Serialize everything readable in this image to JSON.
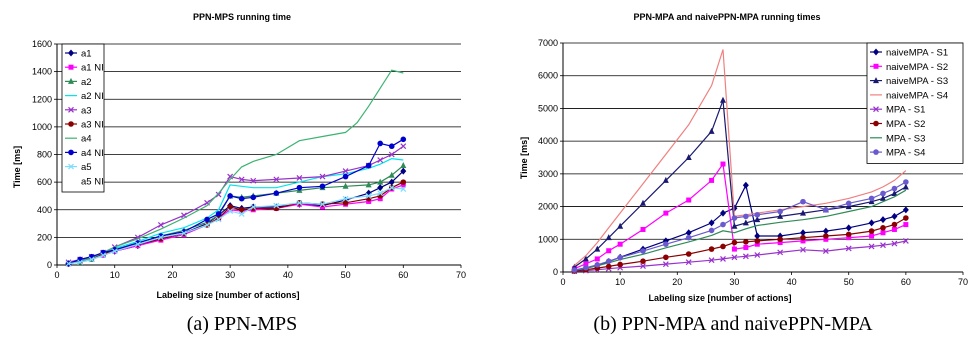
{
  "captions": {
    "left": "(a) PPN-MPS",
    "right": "(b) PPN-MPA and naivePPN-MPA"
  },
  "chart_data": [
    {
      "type": "line",
      "title": "PPN-MPS running time",
      "xlabel": "Labeling size [number of actions]",
      "ylabel": "Time [ms]",
      "xlim": [
        0,
        70
      ],
      "ylim": [
        0,
        1600
      ],
      "xticks": [
        0,
        10,
        20,
        30,
        40,
        50,
        60,
        70
      ],
      "yticks": [
        0,
        200,
        400,
        600,
        800,
        1000,
        1200,
        1400,
        1600
      ],
      "grid": "horizontal",
      "legend_position": "top-left",
      "series": [
        {
          "name": "a1",
          "color": "#000080",
          "marker": "diamond",
          "x": [
            2,
            4,
            6,
            8,
            10,
            14,
            18,
            22,
            26,
            28,
            30,
            32,
            34,
            38,
            42,
            46,
            50,
            54,
            56,
            58,
            60
          ],
          "y": [
            10,
            30,
            50,
            80,
            100,
            140,
            190,
            230,
            300,
            360,
            430,
            410,
            420,
            420,
            440,
            430,
            470,
            520,
            560,
            600,
            680
          ]
        },
        {
          "name": "a1 NI",
          "color": "#ff00ff",
          "marker": "square",
          "x": [
            2,
            4,
            6,
            8,
            10,
            14,
            18,
            22,
            26,
            28,
            30,
            32,
            34,
            38,
            42,
            46,
            50,
            54,
            56,
            58,
            60
          ],
          "y": [
            10,
            30,
            40,
            70,
            100,
            140,
            180,
            220,
            290,
            340,
            400,
            390,
            400,
            410,
            440,
            420,
            440,
            460,
            480,
            550,
            580
          ]
        },
        {
          "name": "a2",
          "color": "#2e8b57",
          "marker": "triangle",
          "x": [
            2,
            4,
            6,
            8,
            10,
            14,
            18,
            22,
            26,
            28,
            30,
            32,
            34,
            38,
            42,
            46,
            50,
            54,
            56,
            58,
            60
          ],
          "y": [
            10,
            20,
            40,
            80,
            110,
            160,
            210,
            250,
            310,
            360,
            500,
            490,
            500,
            520,
            540,
            560,
            570,
            580,
            600,
            650,
            720
          ]
        },
        {
          "name": "a2 NI",
          "color": "#00e5ee",
          "marker": "none",
          "x": [
            2,
            4,
            6,
            8,
            10,
            14,
            18,
            22,
            26,
            28,
            30,
            32,
            34,
            38,
            42,
            46,
            50,
            54,
            56,
            58,
            60
          ],
          "y": [
            20,
            30,
            50,
            80,
            120,
            170,
            230,
            270,
            340,
            400,
            580,
            570,
            560,
            560,
            600,
            640,
            660,
            700,
            730,
            770,
            760
          ]
        },
        {
          "name": "a3",
          "color": "#9932cc",
          "marker": "x",
          "x": [
            2,
            4,
            6,
            8,
            10,
            14,
            18,
            22,
            26,
            28,
            30,
            32,
            34,
            38,
            42,
            46,
            50,
            54,
            56,
            58,
            60
          ],
          "y": [
            20,
            40,
            60,
            90,
            130,
            200,
            290,
            360,
            450,
            510,
            640,
            620,
            610,
            620,
            630,
            640,
            680,
            720,
            760,
            800,
            860
          ]
        },
        {
          "name": "a3 NI",
          "color": "#8b0000",
          "marker": "circle",
          "x": [
            2,
            4,
            6,
            8,
            10,
            14,
            18,
            22,
            26,
            28,
            30,
            32,
            34,
            38,
            42,
            46,
            50,
            54,
            56,
            58,
            60
          ],
          "y": [
            10,
            30,
            50,
            80,
            110,
            150,
            190,
            230,
            290,
            340,
            420,
            400,
            410,
            410,
            450,
            440,
            450,
            480,
            500,
            560,
            600
          ]
        },
        {
          "name": "a4",
          "color": "#3cb371",
          "marker": "none",
          "x": [
            2,
            4,
            6,
            8,
            10,
            14,
            18,
            22,
            26,
            28,
            30,
            32,
            34,
            38,
            42,
            46,
            50,
            52,
            54,
            56,
            58,
            60
          ],
          "y": [
            10,
            30,
            50,
            90,
            130,
            190,
            260,
            340,
            430,
            520,
            620,
            710,
            750,
            800,
            900,
            930,
            960,
            1030,
            1150,
            1280,
            1410,
            1390
          ]
        },
        {
          "name": "a4 NI",
          "color": "#0000cd",
          "marker": "circle",
          "x": [
            2,
            4,
            6,
            8,
            10,
            14,
            18,
            22,
            26,
            28,
            30,
            32,
            34,
            38,
            42,
            46,
            50,
            54,
            56,
            58,
            60
          ],
          "y": [
            10,
            40,
            60,
            90,
            110,
            160,
            210,
            240,
            330,
            370,
            500,
            480,
            490,
            520,
            560,
            570,
            640,
            720,
            880,
            860,
            910
          ]
        },
        {
          "name": "a5",
          "color": "#7fdcff",
          "marker": "x",
          "x": [
            2,
            4,
            6,
            8,
            10,
            14,
            18,
            22,
            26,
            28,
            30,
            32,
            34,
            38,
            42,
            46,
            50,
            54,
            56,
            58,
            60
          ],
          "y": [
            10,
            20,
            40,
            70,
            100,
            150,
            200,
            230,
            290,
            330,
            390,
            370,
            420,
            430,
            450,
            440,
            480,
            500,
            520,
            560,
            550
          ]
        },
        {
          "name": "a5 NI",
          "color": "#000000",
          "marker": "none",
          "x": [],
          "y": []
        }
      ]
    },
    {
      "type": "line",
      "title": "PPN-MPA and naivePPN-MPA running times",
      "xlabel": "Labeling size [number of actions]",
      "ylabel": "Time [ms]",
      "xlim": [
        0,
        70
      ],
      "ylim": [
        0,
        7000
      ],
      "xticks": [
        0,
        10,
        20,
        30,
        40,
        50,
        60,
        70
      ],
      "yticks": [
        0,
        1000,
        2000,
        3000,
        4000,
        5000,
        6000,
        7000
      ],
      "grid": "horizontal",
      "legend_position": "top-right",
      "series": [
        {
          "name": "naiveMPA - S1",
          "color": "#000080",
          "marker": "diamond",
          "x": [
            2,
            4,
            6,
            8,
            10,
            14,
            18,
            22,
            26,
            28,
            30,
            32,
            34,
            38,
            42,
            46,
            50,
            54,
            56,
            58,
            60
          ],
          "y": [
            50,
            120,
            200,
            320,
            450,
            700,
            950,
            1200,
            1500,
            1800,
            1950,
            2650,
            1100,
            1100,
            1200,
            1250,
            1350,
            1500,
            1600,
            1700,
            1900
          ]
        },
        {
          "name": "naiveMPA - S2",
          "color": "#ff00ff",
          "marker": "square",
          "x": [
            2,
            4,
            6,
            8,
            10,
            14,
            18,
            22,
            26,
            28,
            30,
            32,
            34,
            38,
            42,
            46,
            50,
            54,
            56,
            58,
            60
          ],
          "y": [
            100,
            250,
            400,
            650,
            850,
            1300,
            1800,
            2200,
            2800,
            3300,
            700,
            750,
            850,
            900,
            950,
            1000,
            1050,
            1100,
            1200,
            1300,
            1450
          ]
        },
        {
          "name": "naiveMPA - S3",
          "color": "#191970",
          "marker": "triangle",
          "x": [
            2,
            4,
            6,
            8,
            10,
            14,
            18,
            22,
            26,
            28,
            30,
            32,
            34,
            38,
            42,
            46,
            50,
            54,
            56,
            58,
            60
          ],
          "y": [
            150,
            400,
            700,
            1050,
            1400,
            2100,
            2800,
            3500,
            4300,
            5250,
            1400,
            1500,
            1600,
            1700,
            1800,
            1900,
            2000,
            2150,
            2250,
            2400,
            2600
          ]
        },
        {
          "name": "naiveMPA - S4",
          "color": "#f08080",
          "marker": "none",
          "x": [
            2,
            4,
            6,
            8,
            10,
            14,
            18,
            22,
            26,
            28,
            30,
            32,
            34,
            38,
            42,
            46,
            50,
            54,
            56,
            58,
            60
          ],
          "y": [
            200,
            500,
            900,
            1350,
            1800,
            2700,
            3600,
            4500,
            5700,
            6800,
            1700,
            1750,
            1800,
            1900,
            2000,
            2100,
            2250,
            2450,
            2600,
            2800,
            3100
          ]
        },
        {
          "name": "MPA - S1",
          "color": "#9932cc",
          "marker": "x",
          "x": [
            2,
            4,
            6,
            8,
            10,
            14,
            18,
            22,
            26,
            28,
            30,
            32,
            34,
            38,
            42,
            46,
            50,
            54,
            56,
            58,
            60
          ],
          "y": [
            20,
            40,
            70,
            100,
            130,
            180,
            240,
            300,
            360,
            400,
            450,
            480,
            520,
            600,
            680,
            640,
            720,
            780,
            820,
            870,
            950
          ]
        },
        {
          "name": "MPA - S2",
          "color": "#8b0000",
          "marker": "circle",
          "x": [
            2,
            4,
            6,
            8,
            10,
            14,
            18,
            22,
            26,
            28,
            30,
            32,
            34,
            38,
            42,
            46,
            50,
            54,
            56,
            58,
            60
          ],
          "y": [
            30,
            70,
            120,
            170,
            230,
            330,
            450,
            550,
            700,
            780,
            900,
            920,
            950,
            1000,
            1050,
            1100,
            1150,
            1250,
            1350,
            1450,
            1650
          ]
        },
        {
          "name": "MPA - S3",
          "color": "#2e8b57",
          "marker": "none",
          "x": [
            2,
            4,
            6,
            8,
            10,
            14,
            18,
            22,
            26,
            28,
            30,
            32,
            34,
            38,
            42,
            46,
            50,
            54,
            56,
            58,
            60
          ],
          "y": [
            50,
            110,
            190,
            280,
            380,
            540,
            740,
            920,
            1120,
            1260,
            1200,
            1320,
            1420,
            1520,
            1600,
            1700,
            1850,
            2000,
            2150,
            2300,
            2500
          ]
        },
        {
          "name": "MPA - S4",
          "color": "#6a5acd",
          "marker": "circle",
          "x": [
            2,
            4,
            6,
            8,
            10,
            14,
            18,
            22,
            26,
            28,
            30,
            32,
            34,
            38,
            42,
            46,
            50,
            54,
            56,
            58,
            60
          ],
          "y": [
            60,
            130,
            220,
            330,
            440,
            640,
            850,
            1050,
            1270,
            1450,
            1650,
            1700,
            1750,
            1850,
            2150,
            1900,
            2100,
            2250,
            2400,
            2550,
            2750
          ]
        }
      ]
    }
  ]
}
